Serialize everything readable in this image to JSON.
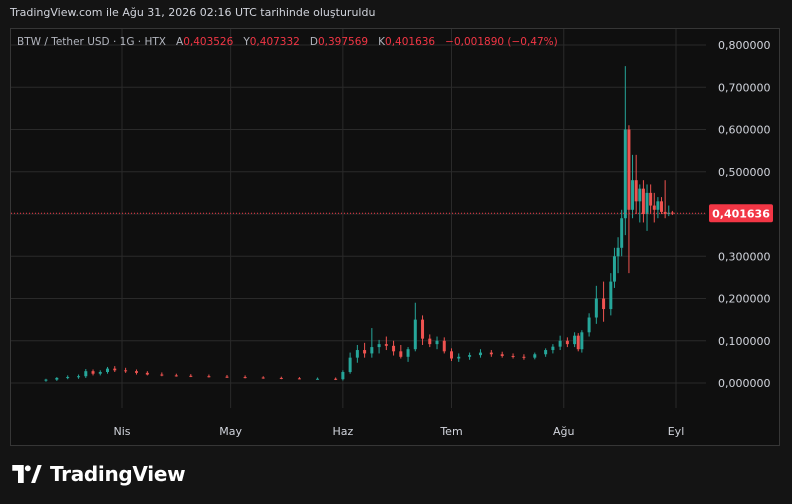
{
  "header": {
    "caption": "TradingView.com ile Ağu 31, 2026 02:16 UTC tarihinde oluşturuldu"
  },
  "legend": {
    "symbol": "BTW / Tether USD · 1G · HTX",
    "open_label": "A",
    "open": "0,403526",
    "high_label": "Y",
    "high": "0,407332",
    "low_label": "D",
    "low": "0,397569",
    "close_label": "K",
    "close": "0,401636",
    "change": "−0,001890 (−0,47%)"
  },
  "price_badge": "0,401636",
  "brand": {
    "name": "TradingView"
  },
  "colors": {
    "up": "#26a69a",
    "down": "#ef5350",
    "badge": "#f23645",
    "grid": "#2a2a2a"
  },
  "chart_data": {
    "type": "candlestick",
    "x_ticks": [
      "Nis",
      "May",
      "Haz",
      "Tem",
      "Ağu",
      "Eyl"
    ],
    "y_ticks": [
      "0,000000",
      "0,100000",
      "0,200000",
      "0,300000",
      "0,400000",
      "0,500000",
      "0,600000",
      "0,700000",
      "0,800000"
    ],
    "ylim": [
      -0.05,
      0.83
    ],
    "current_price": 0.401636,
    "grid": true,
    "series": [
      {
        "m": "Mar",
        "d": 11,
        "o": 0.006,
        "h": 0.01,
        "l": 0.003,
        "c": 0.008
      },
      {
        "m": "Mar",
        "d": 14,
        "o": 0.008,
        "h": 0.014,
        "l": 0.005,
        "c": 0.012
      },
      {
        "m": "Mar",
        "d": 17,
        "o": 0.012,
        "h": 0.018,
        "l": 0.009,
        "c": 0.014
      },
      {
        "m": "Mar",
        "d": 20,
        "o": 0.014,
        "h": 0.02,
        "l": 0.01,
        "c": 0.016
      },
      {
        "m": "Mar",
        "d": 22,
        "o": 0.016,
        "h": 0.033,
        "l": 0.012,
        "c": 0.028
      },
      {
        "m": "Mar",
        "d": 24,
        "o": 0.028,
        "h": 0.032,
        "l": 0.018,
        "c": 0.022
      },
      {
        "m": "Mar",
        "d": 26,
        "o": 0.022,
        "h": 0.03,
        "l": 0.018,
        "c": 0.026
      },
      {
        "m": "Mar",
        "d": 28,
        "o": 0.026,
        "h": 0.038,
        "l": 0.022,
        "c": 0.034
      },
      {
        "m": "Mar",
        "d": 30,
        "o": 0.034,
        "h": 0.04,
        "l": 0.026,
        "c": 0.03
      },
      {
        "m": "Apr",
        "d": 2,
        "o": 0.03,
        "h": 0.036,
        "l": 0.024,
        "c": 0.028
      },
      {
        "m": "Apr",
        "d": 5,
        "o": 0.028,
        "h": 0.032,
        "l": 0.02,
        "c": 0.024
      },
      {
        "m": "Apr",
        "d": 8,
        "o": 0.024,
        "h": 0.028,
        "l": 0.018,
        "c": 0.02
      },
      {
        "m": "Apr",
        "d": 12,
        "o": 0.02,
        "h": 0.025,
        "l": 0.016,
        "c": 0.018
      },
      {
        "m": "Apr",
        "d": 16,
        "o": 0.018,
        "h": 0.022,
        "l": 0.015,
        "c": 0.017
      },
      {
        "m": "Apr",
        "d": 20,
        "o": 0.017,
        "h": 0.021,
        "l": 0.014,
        "c": 0.016
      },
      {
        "m": "Apr",
        "d": 25,
        "o": 0.016,
        "h": 0.02,
        "l": 0.013,
        "c": 0.015
      },
      {
        "m": "Apr",
        "d": 30,
        "o": 0.015,
        "h": 0.019,
        "l": 0.012,
        "c": 0.014
      },
      {
        "m": "May",
        "d": 5,
        "o": 0.014,
        "h": 0.018,
        "l": 0.011,
        "c": 0.013
      },
      {
        "m": "May",
        "d": 10,
        "o": 0.013,
        "h": 0.016,
        "l": 0.01,
        "c": 0.012
      },
      {
        "m": "May",
        "d": 15,
        "o": 0.012,
        "h": 0.015,
        "l": 0.009,
        "c": 0.011
      },
      {
        "m": "May",
        "d": 20,
        "o": 0.011,
        "h": 0.014,
        "l": 0.009,
        "c": 0.01
      },
      {
        "m": "May",
        "d": 25,
        "o": 0.01,
        "h": 0.013,
        "l": 0.008,
        "c": 0.01
      },
      {
        "m": "May",
        "d": 30,
        "o": 0.01,
        "h": 0.013,
        "l": 0.007,
        "c": 0.009
      },
      {
        "m": "Jun",
        "d": 1,
        "o": 0.009,
        "h": 0.03,
        "l": 0.006,
        "c": 0.026
      },
      {
        "m": "Jun",
        "d": 3,
        "o": 0.026,
        "h": 0.072,
        "l": 0.022,
        "c": 0.06
      },
      {
        "m": "Jun",
        "d": 5,
        "o": 0.06,
        "h": 0.09,
        "l": 0.048,
        "c": 0.078
      },
      {
        "m": "Jun",
        "d": 7,
        "o": 0.078,
        "h": 0.095,
        "l": 0.06,
        "c": 0.07
      },
      {
        "m": "Jun",
        "d": 9,
        "o": 0.07,
        "h": 0.13,
        "l": 0.06,
        "c": 0.085
      },
      {
        "m": "Jun",
        "d": 11,
        "o": 0.085,
        "h": 0.102,
        "l": 0.07,
        "c": 0.092
      },
      {
        "m": "Jun",
        "d": 13,
        "o": 0.092,
        "h": 0.11,
        "l": 0.078,
        "c": 0.088
      },
      {
        "m": "Jun",
        "d": 15,
        "o": 0.088,
        "h": 0.1,
        "l": 0.065,
        "c": 0.075
      },
      {
        "m": "Jun",
        "d": 17,
        "o": 0.075,
        "h": 0.09,
        "l": 0.058,
        "c": 0.062
      },
      {
        "m": "Jun",
        "d": 19,
        "o": 0.062,
        "h": 0.085,
        "l": 0.05,
        "c": 0.08
      },
      {
        "m": "Jun",
        "d": 21,
        "o": 0.08,
        "h": 0.19,
        "l": 0.075,
        "c": 0.15
      },
      {
        "m": "Jun",
        "d": 23,
        "o": 0.15,
        "h": 0.16,
        "l": 0.09,
        "c": 0.105
      },
      {
        "m": "Jun",
        "d": 25,
        "o": 0.105,
        "h": 0.115,
        "l": 0.085,
        "c": 0.092
      },
      {
        "m": "Jun",
        "d": 27,
        "o": 0.092,
        "h": 0.11,
        "l": 0.08,
        "c": 0.1
      },
      {
        "m": "Jun",
        "d": 29,
        "o": 0.1,
        "h": 0.108,
        "l": 0.07,
        "c": 0.075
      },
      {
        "m": "Jul",
        "d": 1,
        "o": 0.075,
        "h": 0.082,
        "l": 0.052,
        "c": 0.058
      },
      {
        "m": "Jul",
        "d": 3,
        "o": 0.058,
        "h": 0.07,
        "l": 0.05,
        "c": 0.062
      },
      {
        "m": "Jul",
        "d": 6,
        "o": 0.062,
        "h": 0.072,
        "l": 0.055,
        "c": 0.066
      },
      {
        "m": "Jul",
        "d": 9,
        "o": 0.066,
        "h": 0.08,
        "l": 0.06,
        "c": 0.072
      },
      {
        "m": "Jul",
        "d": 12,
        "o": 0.072,
        "h": 0.078,
        "l": 0.062,
        "c": 0.068
      },
      {
        "m": "Jul",
        "d": 15,
        "o": 0.068,
        "h": 0.074,
        "l": 0.06,
        "c": 0.064
      },
      {
        "m": "Jul",
        "d": 18,
        "o": 0.064,
        "h": 0.07,
        "l": 0.058,
        "c": 0.062
      },
      {
        "m": "Jul",
        "d": 21,
        "o": 0.062,
        "h": 0.068,
        "l": 0.055,
        "c": 0.06
      },
      {
        "m": "Jul",
        "d": 24,
        "o": 0.06,
        "h": 0.072,
        "l": 0.056,
        "c": 0.068
      },
      {
        "m": "Jul",
        "d": 27,
        "o": 0.068,
        "h": 0.082,
        "l": 0.062,
        "c": 0.078
      },
      {
        "m": "Jul",
        "d": 29,
        "o": 0.078,
        "h": 0.092,
        "l": 0.07,
        "c": 0.086
      },
      {
        "m": "Jul",
        "d": 31,
        "o": 0.086,
        "h": 0.112,
        "l": 0.078,
        "c": 0.1
      },
      {
        "m": "Aug",
        "d": 2,
        "o": 0.1,
        "h": 0.108,
        "l": 0.085,
        "c": 0.092
      },
      {
        "m": "Aug",
        "d": 4,
        "o": 0.092,
        "h": 0.12,
        "l": 0.085,
        "c": 0.112
      },
      {
        "m": "Aug",
        "d": 5,
        "o": 0.112,
        "h": 0.118,
        "l": 0.075,
        "c": 0.08
      },
      {
        "m": "Aug",
        "d": 6,
        "o": 0.08,
        "h": 0.125,
        "l": 0.072,
        "c": 0.12
      },
      {
        "m": "Aug",
        "d": 8,
        "o": 0.12,
        "h": 0.165,
        "l": 0.11,
        "c": 0.155
      },
      {
        "m": "Aug",
        "d": 10,
        "o": 0.155,
        "h": 0.23,
        "l": 0.14,
        "c": 0.2
      },
      {
        "m": "Aug",
        "d": 12,
        "o": 0.2,
        "h": 0.24,
        "l": 0.145,
        "c": 0.175
      },
      {
        "m": "Aug",
        "d": 14,
        "o": 0.175,
        "h": 0.26,
        "l": 0.16,
        "c": 0.24
      },
      {
        "m": "Aug",
        "d": 15,
        "o": 0.24,
        "h": 0.32,
        "l": 0.225,
        "c": 0.3
      },
      {
        "m": "Aug",
        "d": 16,
        "o": 0.3,
        "h": 0.345,
        "l": 0.26,
        "c": 0.32
      },
      {
        "m": "Aug",
        "d": 17,
        "o": 0.32,
        "h": 0.41,
        "l": 0.3,
        "c": 0.39
      },
      {
        "m": "Aug",
        "d": 18,
        "o": 0.39,
        "h": 0.75,
        "l": 0.35,
        "c": 0.6
      },
      {
        "m": "Aug",
        "d": 19,
        "o": 0.6,
        "h": 0.61,
        "l": 0.26,
        "c": 0.41
      },
      {
        "m": "Aug",
        "d": 20,
        "o": 0.41,
        "h": 0.54,
        "l": 0.39,
        "c": 0.48
      },
      {
        "m": "Aug",
        "d": 21,
        "o": 0.48,
        "h": 0.54,
        "l": 0.4,
        "c": 0.43
      },
      {
        "m": "Aug",
        "d": 22,
        "o": 0.43,
        "h": 0.47,
        "l": 0.38,
        "c": 0.46
      },
      {
        "m": "Aug",
        "d": 23,
        "o": 0.46,
        "h": 0.48,
        "l": 0.38,
        "c": 0.4
      },
      {
        "m": "Aug",
        "d": 24,
        "o": 0.4,
        "h": 0.47,
        "l": 0.36,
        "c": 0.45
      },
      {
        "m": "Aug",
        "d": 25,
        "o": 0.45,
        "h": 0.47,
        "l": 0.4,
        "c": 0.42
      },
      {
        "m": "Aug",
        "d": 26,
        "o": 0.42,
        "h": 0.45,
        "l": 0.38,
        "c": 0.41
      },
      {
        "m": "Aug",
        "d": 27,
        "o": 0.41,
        "h": 0.44,
        "l": 0.39,
        "c": 0.43
      },
      {
        "m": "Aug",
        "d": 28,
        "o": 0.43,
        "h": 0.44,
        "l": 0.4,
        "c": 0.405
      },
      {
        "m": "Aug",
        "d": 29,
        "o": 0.405,
        "h": 0.48,
        "l": 0.39,
        "c": 0.4
      },
      {
        "m": "Aug",
        "d": 30,
        "o": 0.4,
        "h": 0.42,
        "l": 0.395,
        "c": 0.403
      },
      {
        "m": "Aug",
        "d": 31,
        "o": 0.403526,
        "h": 0.407332,
        "l": 0.397569,
        "c": 0.401636
      }
    ]
  }
}
